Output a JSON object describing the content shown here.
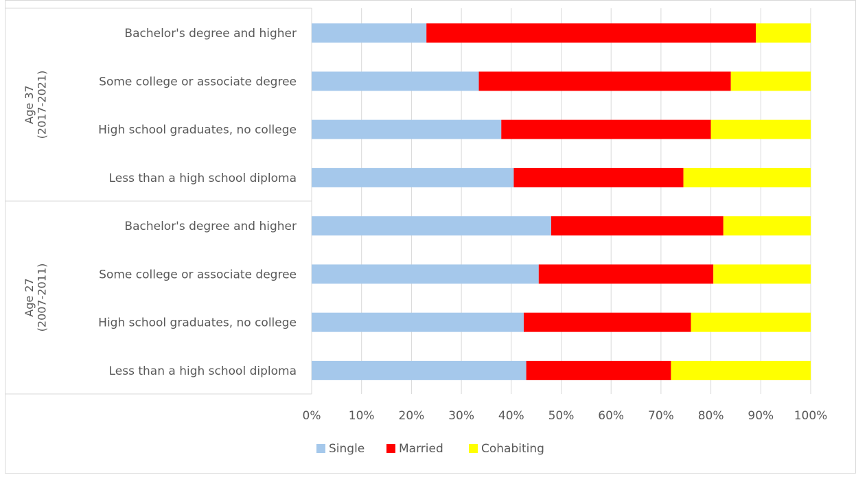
{
  "chart_data": {
    "type": "bar",
    "orientation": "horizontal",
    "stacked": "percent",
    "title": "",
    "xlabel": "",
    "ylabel": "",
    "xlim": [
      0,
      100
    ],
    "x_ticks": [
      "0%",
      "10%",
      "20%",
      "30%",
      "40%",
      "50%",
      "60%",
      "70%",
      "80%",
      "90%",
      "100%"
    ],
    "grid": "vertical",
    "legend_position": "bottom",
    "groups": [
      {
        "label_line1": "Age 37",
        "label_line2": "(2017-2021)",
        "categories": [
          "Bachelor's degree and higher",
          "Some college or associate degree",
          "High school graduates, no college",
          "Less than a high school diploma"
        ]
      },
      {
        "label_line1": "Age 27",
        "label_line2": "(2007-2011)",
        "categories": [
          "Bachelor's degree and higher",
          "Some college or associate degree",
          "High school graduates, no college",
          "Less than a high school diploma"
        ]
      }
    ],
    "series": [
      {
        "name": "Single",
        "color": "#A5C8EB",
        "values": [
          23,
          33.5,
          38,
          40.5,
          48,
          45.5,
          42.5,
          43
        ]
      },
      {
        "name": "Married",
        "color": "#FF0000",
        "values": [
          66,
          50.5,
          42,
          34,
          34.5,
          35,
          33.5,
          29
        ]
      },
      {
        "name": "Cohabiting",
        "color": "#FFFF00",
        "values": [
          11,
          16,
          20,
          25.5,
          17.5,
          19.5,
          24,
          28
        ]
      }
    ]
  }
}
